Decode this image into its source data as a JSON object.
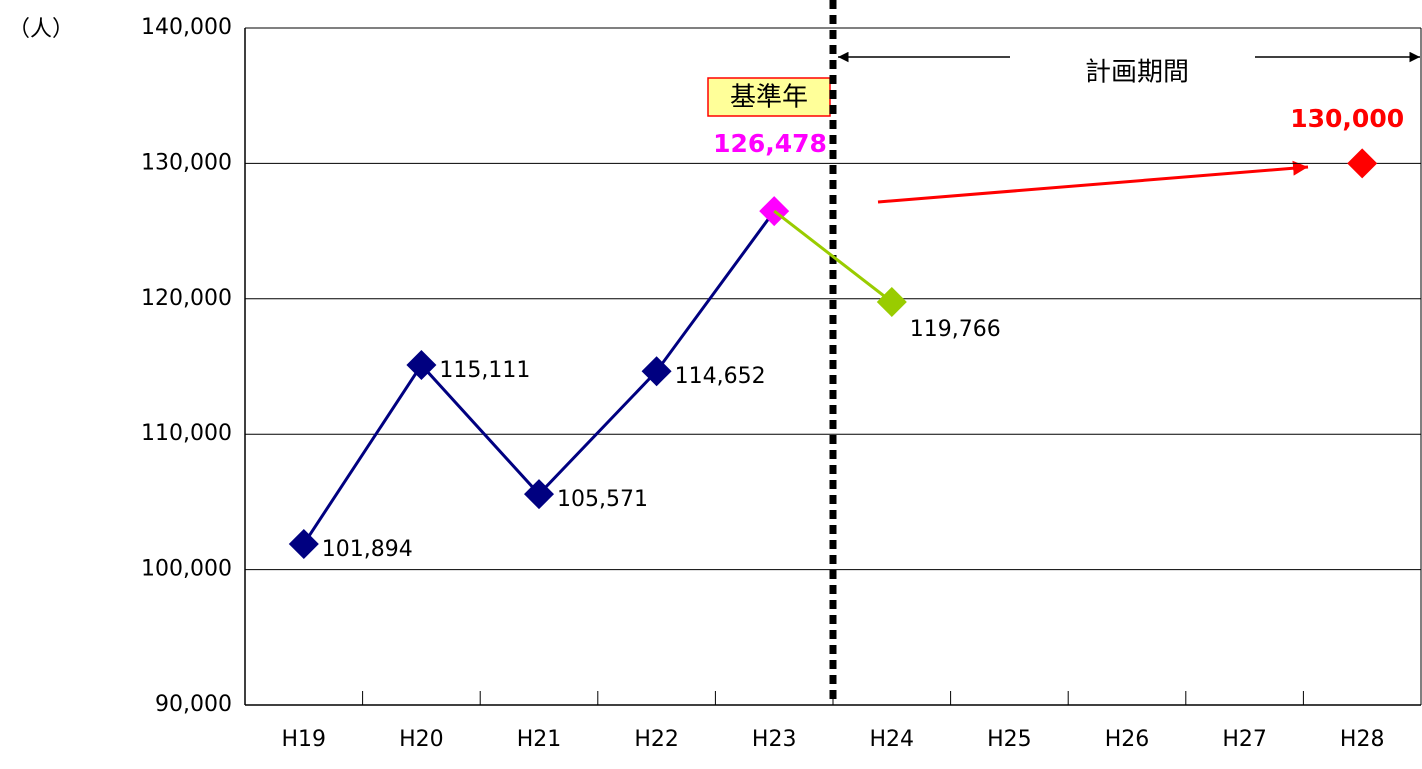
{
  "chart_data": {
    "type": "line",
    "unit_label": "（人）",
    "categories": [
      "H19",
      "H20",
      "H21",
      "H22",
      "H23",
      "H24",
      "H25",
      "H26",
      "H27",
      "H28"
    ],
    "series": [
      {
        "color": "#000080",
        "values": [
          101894,
          115111,
          105571,
          114652,
          126478,
          null,
          null,
          null,
          null,
          null
        ],
        "value_labels": [
          "101,894",
          "115,111",
          "105,571",
          "114,652",
          "126,478",
          null,
          null,
          null,
          null,
          null
        ],
        "marker_colors": [
          "#000080",
          "#000080",
          "#000080",
          "#000080",
          "#ff00ff",
          null,
          null,
          null,
          null,
          null
        ]
      },
      {
        "color": "#99cc00",
        "values": [
          null,
          null,
          null,
          null,
          null,
          119766,
          null,
          null,
          null,
          null
        ],
        "value_labels": [
          null,
          null,
          null,
          null,
          null,
          "119,766",
          null,
          null,
          null,
          null
        ]
      },
      {
        "color": "#ff0000",
        "values": [
          null,
          null,
          null,
          null,
          null,
          null,
          null,
          null,
          null,
          130000
        ],
        "value_labels": [
          null,
          null,
          null,
          null,
          null,
          null,
          null,
          null,
          null,
          "130,000"
        ]
      }
    ],
    "annotations": {
      "base_year": "基準年",
      "plan_period": "計画期間"
    },
    "ylim": [
      90000,
      140000
    ],
    "yticks": [
      {
        "value": 90000,
        "label": "90,000"
      },
      {
        "value": 100000,
        "label": "100,000"
      },
      {
        "value": 110000,
        "label": "110,000"
      },
      {
        "value": 120000,
        "label": "120,000"
      },
      {
        "value": 130000,
        "label": "130,000"
      },
      {
        "value": 140000,
        "label": "140,000"
      }
    ],
    "grid": true
  }
}
